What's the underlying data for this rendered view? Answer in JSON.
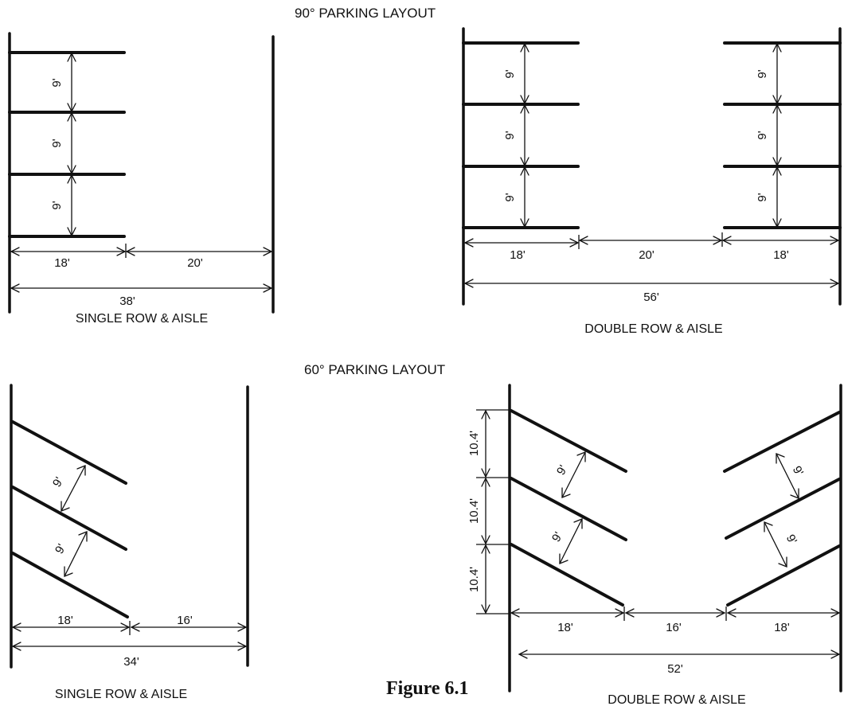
{
  "titles": {
    "layout_90": "90° PARKING LAYOUT",
    "layout_60": "60° PARKING LAYOUT"
  },
  "captions": {
    "single_row_aisle": "SINGLE ROW & AISLE",
    "double_row_aisle": "DOUBLE ROW & AISLE"
  },
  "figure_label": "Figure 6.1",
  "dimensions": {
    "stall_width": "9'",
    "stall_depth": "18'",
    "aisle_90": "20'",
    "aisle_60": "16'",
    "total_single_90": "38'",
    "total_double_90": "56'",
    "total_single_60": "34'",
    "total_double_60": "52'",
    "stall_width_60_curb": "10.4'"
  }
}
